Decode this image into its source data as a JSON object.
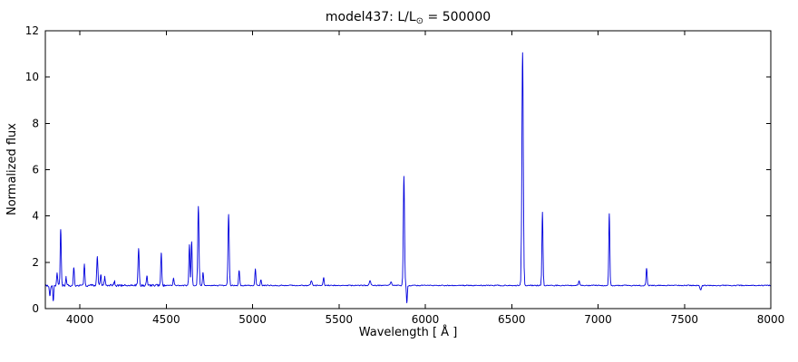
{
  "title": {
    "prefix": "model437: L/L",
    "sun_symbol": "⊙",
    "suffix": " = 500000"
  },
  "axes": {
    "xlabel": "Wavelength [ Å ]",
    "ylabel": "Normalized flux"
  },
  "chart_data": {
    "type": "line",
    "title": "model437: L/L⊙ = 500000",
    "xlabel": "Wavelength [ Å ]",
    "ylabel": "Normalized flux",
    "line_color": "#0000dd",
    "axis_color": "#000000",
    "background_color": "#ffffff",
    "xlim": [
      3800,
      8000
    ],
    "ylim": [
      0,
      12
    ],
    "xticks": [
      4000,
      4500,
      5000,
      5500,
      6000,
      6500,
      7000,
      7500,
      8000
    ],
    "yticks": [
      0,
      2,
      4,
      6,
      8,
      10,
      12
    ],
    "continuum_level": 1.0,
    "noise_amplitude_blue": 0.1,
    "noise_amplitude_red": 0.045,
    "emission_lines": [
      {
        "wavelength": 3868,
        "peak": 1.55,
        "sigma": 3
      },
      {
        "wavelength": 3889,
        "peak": 3.45,
        "sigma": 3
      },
      {
        "wavelength": 3920,
        "peak": 1.35,
        "sigma": 3
      },
      {
        "wavelength": 3965,
        "peak": 1.75,
        "sigma": 3
      },
      {
        "wavelength": 4026,
        "peak": 1.9,
        "sigma": 3
      },
      {
        "wavelength": 4101,
        "peak": 2.2,
        "sigma": 3.5
      },
      {
        "wavelength": 4121,
        "peak": 1.5,
        "sigma": 3
      },
      {
        "wavelength": 4144,
        "peak": 1.35,
        "sigma": 3
      },
      {
        "wavelength": 4200,
        "peak": 1.2,
        "sigma": 3
      },
      {
        "wavelength": 4340,
        "peak": 2.55,
        "sigma": 3.5
      },
      {
        "wavelength": 4388,
        "peak": 1.4,
        "sigma": 3
      },
      {
        "wavelength": 4471,
        "peak": 2.4,
        "sigma": 3
      },
      {
        "wavelength": 4542,
        "peak": 1.3,
        "sigma": 3
      },
      {
        "wavelength": 4634,
        "peak": 2.75,
        "sigma": 3
      },
      {
        "wavelength": 4647,
        "peak": 2.9,
        "sigma": 3
      },
      {
        "wavelength": 4686,
        "peak": 4.4,
        "sigma": 3.5
      },
      {
        "wavelength": 4713,
        "peak": 1.55,
        "sigma": 3
      },
      {
        "wavelength": 4861,
        "peak": 4.05,
        "sigma": 3.5
      },
      {
        "wavelength": 4922,
        "peak": 1.65,
        "sigma": 3
      },
      {
        "wavelength": 5016,
        "peak": 1.7,
        "sigma": 3
      },
      {
        "wavelength": 5048,
        "peak": 1.25,
        "sigma": 3
      },
      {
        "wavelength": 5340,
        "peak": 1.2,
        "sigma": 4
      },
      {
        "wavelength": 5411,
        "peak": 1.35,
        "sigma": 3
      },
      {
        "wavelength": 5680,
        "peak": 1.2,
        "sigma": 4
      },
      {
        "wavelength": 5801,
        "peak": 1.15,
        "sigma": 4
      },
      {
        "wavelength": 5876,
        "peak": 5.7,
        "sigma": 3.5
      },
      {
        "wavelength": 6563,
        "peak": 11.05,
        "sigma": 4
      },
      {
        "wavelength": 6678,
        "peak": 4.15,
        "sigma": 3
      },
      {
        "wavelength": 6890,
        "peak": 1.2,
        "sigma": 3
      },
      {
        "wavelength": 7065,
        "peak": 4.1,
        "sigma": 3
      },
      {
        "wavelength": 7281,
        "peak": 1.75,
        "sigma": 3
      }
    ],
    "absorption_lines": [
      {
        "wavelength": 3826,
        "min": 0.55,
        "sigma": 3
      },
      {
        "wavelength": 3846,
        "min": 0.3,
        "sigma": 2.5
      },
      {
        "wavelength": 5893,
        "min": 0.25,
        "sigma": 2.5
      },
      {
        "wavelength": 7594,
        "min": 0.8,
        "sigma": 4
      }
    ]
  }
}
